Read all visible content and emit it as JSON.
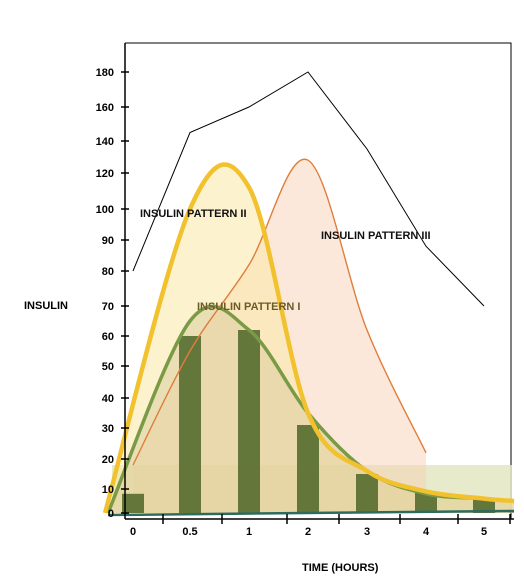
{
  "chart_data": {
    "type": "area",
    "xlabel": "TIME (HOURS)",
    "ylabel": "INSULIN",
    "x_ticks": [
      "0",
      "0.5",
      "1",
      "2",
      "3",
      "4",
      "5"
    ],
    "y_ticks": [
      "0",
      "10",
      "20",
      "30",
      "40",
      "50",
      "60",
      "70",
      "80",
      "90",
      "100",
      "120",
      "140",
      "160",
      "180"
    ],
    "colors": {
      "pattern_i": "#7a9a45",
      "pattern_ii": "#f2c12e",
      "pattern_iii": "#e07d3a",
      "bars": "#556b2f",
      "upper_line": "#000000"
    },
    "series": [
      {
        "name": "INSULIN PATTERN I",
        "x": [
          "0",
          "0.5",
          "1",
          "2",
          "3",
          "4",
          "5"
        ],
        "values": [
          0,
          65,
          62,
          35,
          16,
          8,
          6
        ]
      },
      {
        "name": "INSULIN PATTERN II",
        "x": [
          "0",
          "0.5",
          "1",
          "2",
          "3",
          "4",
          "5"
        ],
        "values": [
          0,
          100,
          112,
          35,
          16,
          9,
          6
        ]
      },
      {
        "name": "INSULIN PATTERN III",
        "x": [
          "0",
          "0.5",
          "1",
          "2",
          "3",
          "4",
          "5"
        ],
        "values": [
          18,
          55,
          82,
          128,
          62,
          22,
          null
        ]
      }
    ],
    "bars": {
      "x": [
        "0",
        "0.5",
        "1",
        "2",
        "3",
        "4",
        "5"
      ],
      "values": [
        8,
        60,
        62,
        31,
        15,
        9,
        6
      ]
    },
    "upper_line": {
      "x": [
        "0",
        "0.5",
        "1",
        "2",
        "3",
        "4",
        "5"
      ],
      "values": [
        80,
        145,
        160,
        180,
        135,
        88,
        70
      ]
    }
  }
}
